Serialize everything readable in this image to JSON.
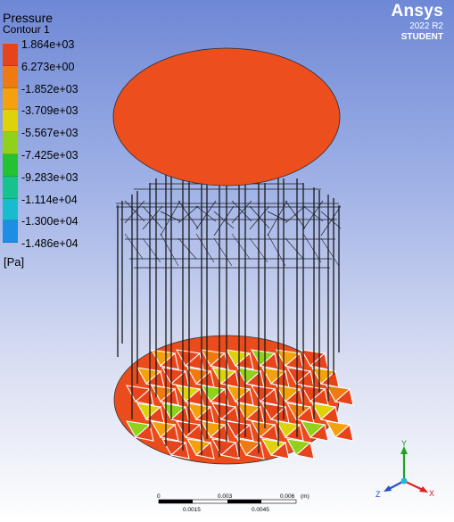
{
  "legend": {
    "title": "Pressure",
    "subtitle": "Contour 1",
    "unit": "[Pa]",
    "labels": [
      "1.864e+03",
      "6.273e+00",
      "-1.852e+03",
      "-3.709e+03",
      "-5.567e+03",
      "-7.425e+03",
      "-9.283e+03",
      "-1.114e+04",
      "-1.300e+04",
      "-1.486e+04"
    ],
    "colors": [
      "#e8441c",
      "#f07a12",
      "#f5a10d",
      "#dfd20b",
      "#90d21b",
      "#22c232",
      "#17c38c",
      "#18bccf",
      "#1c8ee4",
      "#1f42ee"
    ]
  },
  "brand": {
    "name": "Ansys",
    "version": "2022 R2",
    "edition": "STUDENT"
  },
  "scale": {
    "top_ticks": [
      "0",
      "0.003",
      "0.006"
    ],
    "bottom_ticks": [
      "0.0015",
      "0.0045"
    ],
    "unit": "(m)"
  },
  "triad": {
    "x": "X",
    "y": "Y",
    "z": "Z"
  },
  "colors": {
    "top_disk": "#ec4e1d",
    "bottom_disk": "#eb4c1c",
    "wire": "#1a1a1a"
  }
}
